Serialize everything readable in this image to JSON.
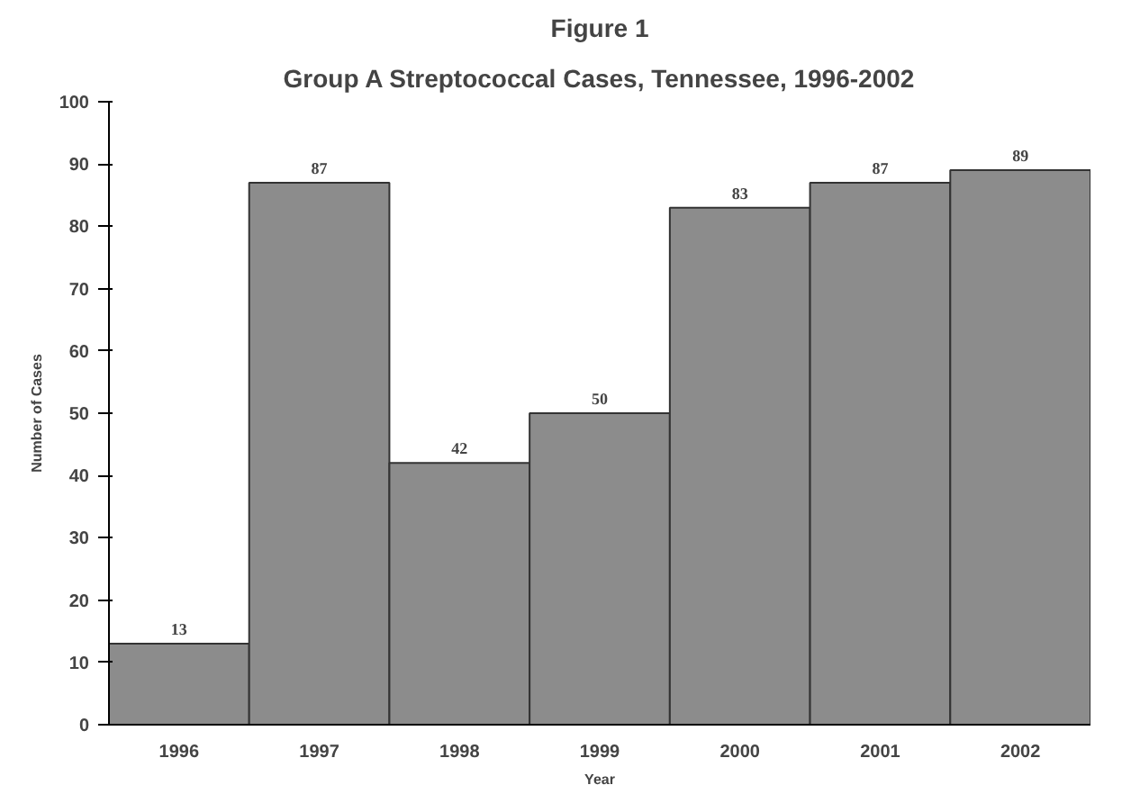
{
  "chart_data": {
    "type": "bar",
    "title": "Figure 1",
    "subtitle": "Group A Streptococcal Cases, Tennessee, 1996-2002",
    "xlabel": "Year",
    "ylabel": "Number of Cases",
    "categories": [
      "1996",
      "1997",
      "1998",
      "1999",
      "2000",
      "2001",
      "2002"
    ],
    "values": [
      13,
      87,
      42,
      50,
      83,
      87,
      89
    ],
    "color": "#8c8c8c",
    "ylim": [
      0,
      100
    ],
    "yticks": [
      0,
      10,
      20,
      30,
      40,
      50,
      60,
      70,
      80,
      90,
      100
    ],
    "grid": false,
    "data_labels": true
  }
}
